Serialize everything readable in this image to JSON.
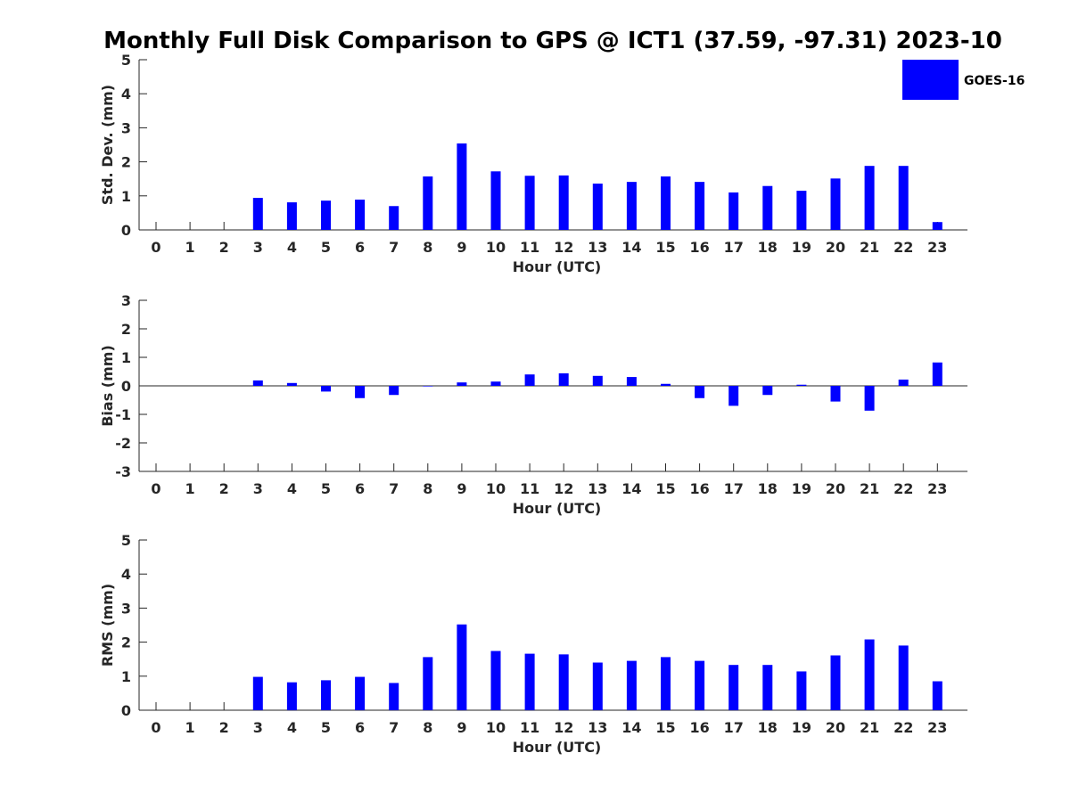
{
  "title": "Monthly Full Disk Comparison to GPS @ ICT1 (37.59, -97.31) 2023-10",
  "legend": {
    "label": "GOES-16",
    "color": "#0000FF"
  },
  "chart_data": [
    {
      "type": "bar",
      "xlabel": "Hour (UTC)",
      "ylabel": "Std. Dev. (mm)",
      "ylim": [
        0,
        5
      ],
      "yticks": [
        "0",
        "1",
        "2",
        "3",
        "4",
        "5"
      ],
      "categories": [
        "0",
        "1",
        "2",
        "3",
        "4",
        "5",
        "6",
        "7",
        "8",
        "9",
        "10",
        "11",
        "12",
        "13",
        "14",
        "15",
        "16",
        "17",
        "18",
        "19",
        "20",
        "21",
        "22",
        "23"
      ],
      "series": [
        {
          "name": "GOES-16",
          "color": "#0000FF",
          "values": [
            0,
            0,
            0,
            0.94,
            0.81,
            0.86,
            0.89,
            0.7,
            1.57,
            2.54,
            1.72,
            1.59,
            1.6,
            1.36,
            1.41,
            1.57,
            1.41,
            1.1,
            1.29,
            1.15,
            1.51,
            1.88,
            1.88,
            0.23
          ]
        }
      ],
      "legend": "top-right"
    },
    {
      "type": "bar",
      "xlabel": "Hour (UTC)",
      "ylabel": "Bias (mm)",
      "ylim": [
        -3,
        3
      ],
      "yticks": [
        "-3",
        "-2",
        "-1",
        "0",
        "1",
        "2",
        "3"
      ],
      "categories": [
        "0",
        "1",
        "2",
        "3",
        "4",
        "5",
        "6",
        "7",
        "8",
        "9",
        "10",
        "11",
        "12",
        "13",
        "14",
        "15",
        "16",
        "17",
        "18",
        "19",
        "20",
        "21",
        "22",
        "23"
      ],
      "series": [
        {
          "name": "GOES-16",
          "color": "#0000FF",
          "values": [
            0,
            0,
            0,
            0.19,
            0.1,
            -0.2,
            -0.43,
            -0.32,
            -0.02,
            0.12,
            0.15,
            0.4,
            0.44,
            0.35,
            0.31,
            0.07,
            -0.43,
            -0.7,
            -0.32,
            0.04,
            -0.55,
            -0.87,
            0.22,
            0.82
          ]
        }
      ]
    },
    {
      "type": "bar",
      "xlabel": "Hour (UTC)",
      "ylabel": "RMS (mm)",
      "ylim": [
        0,
        5
      ],
      "yticks": [
        "0",
        "1",
        "2",
        "3",
        "4",
        "5"
      ],
      "categories": [
        "0",
        "1",
        "2",
        "3",
        "4",
        "5",
        "6",
        "7",
        "8",
        "9",
        "10",
        "11",
        "12",
        "13",
        "14",
        "15",
        "16",
        "17",
        "18",
        "19",
        "20",
        "21",
        "22",
        "23"
      ],
      "series": [
        {
          "name": "GOES-16",
          "color": "#0000FF",
          "values": [
            0,
            0,
            0,
            0.98,
            0.82,
            0.88,
            0.98,
            0.8,
            1.56,
            2.52,
            1.74,
            1.66,
            1.64,
            1.4,
            1.45,
            1.56,
            1.45,
            1.33,
            1.33,
            1.14,
            1.61,
            2.08,
            1.9,
            0.85
          ]
        }
      ]
    }
  ]
}
